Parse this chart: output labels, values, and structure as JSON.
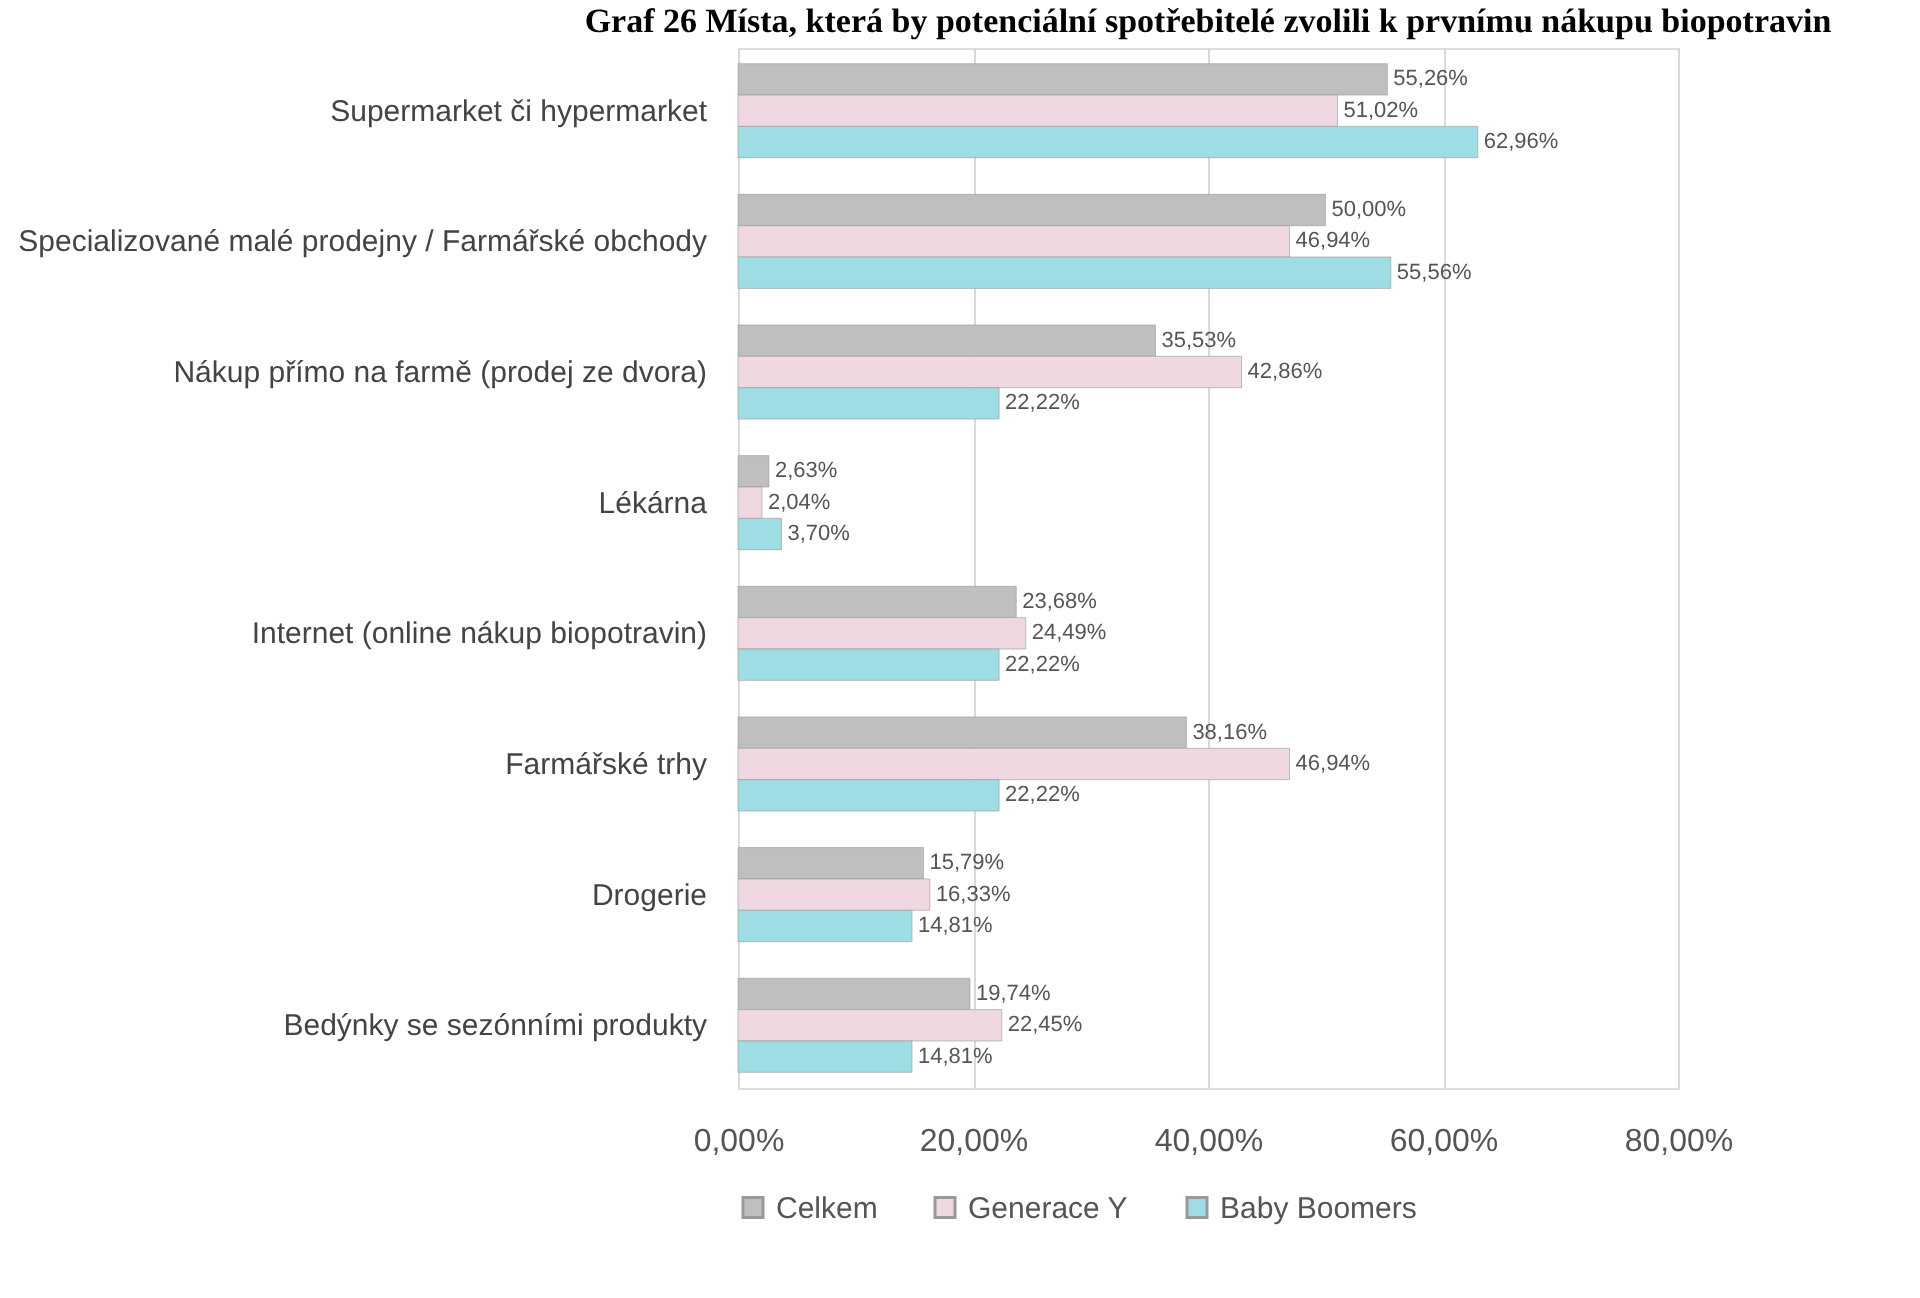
{
  "chart_data": {
    "type": "bar",
    "orientation": "horizontal",
    "title": "Graf 26 Místa, která by potenciální spotřebitelé zvolili k prvnímu nákupu biopotravin",
    "categories": [
      "Supermarket či hypermarket",
      "Specializované malé prodejny / Farmářské obchody",
      "Nákup přímo na farmě (prodej ze dvora)",
      "Lékárna",
      "Internet (online nákup biopotravin)",
      "Farmářské trhy",
      "Drogerie",
      "Bedýnky se sezónními produkty"
    ],
    "series": [
      {
        "name": "Celkem",
        "color": "#bfbfbf",
        "values": [
          55.26,
          50.0,
          35.53,
          2.63,
          23.68,
          38.16,
          15.79,
          19.74
        ],
        "value_labels": [
          "55,26%",
          "50,00%",
          "35,53%",
          "2,63%",
          "23,68%",
          "38,16%",
          "15,79%",
          "19,74%"
        ]
      },
      {
        "name": "Generace Y",
        "color": "#f0d8e2",
        "values": [
          51.02,
          46.94,
          42.86,
          2.04,
          24.49,
          46.94,
          16.33,
          22.45
        ],
        "value_labels": [
          "51,02%",
          "46,94%",
          "42,86%",
          "2,04%",
          "24,49%",
          "46,94%",
          "16,33%",
          "22,45%"
        ]
      },
      {
        "name": "Baby Boomers",
        "color": "#9ddde3",
        "values": [
          62.96,
          55.56,
          22.22,
          3.7,
          22.22,
          22.22,
          14.81,
          14.81
        ],
        "value_labels": [
          "62,96%",
          "55,56%",
          "22,22%",
          "3,70%",
          "22,22%",
          "22,22%",
          "14,81%",
          "14,81%"
        ]
      }
    ],
    "xlim": [
      0,
      80
    ],
    "xticks": [
      {
        "value": 0,
        "label": "0,00%"
      },
      {
        "value": 20,
        "label": "20,00%"
      },
      {
        "value": 40,
        "label": "40,00%"
      },
      {
        "value": 60,
        "label": "60,00%"
      },
      {
        "value": 80,
        "label": "80,00%"
      }
    ],
    "grid": "x",
    "legend": "bottom"
  }
}
